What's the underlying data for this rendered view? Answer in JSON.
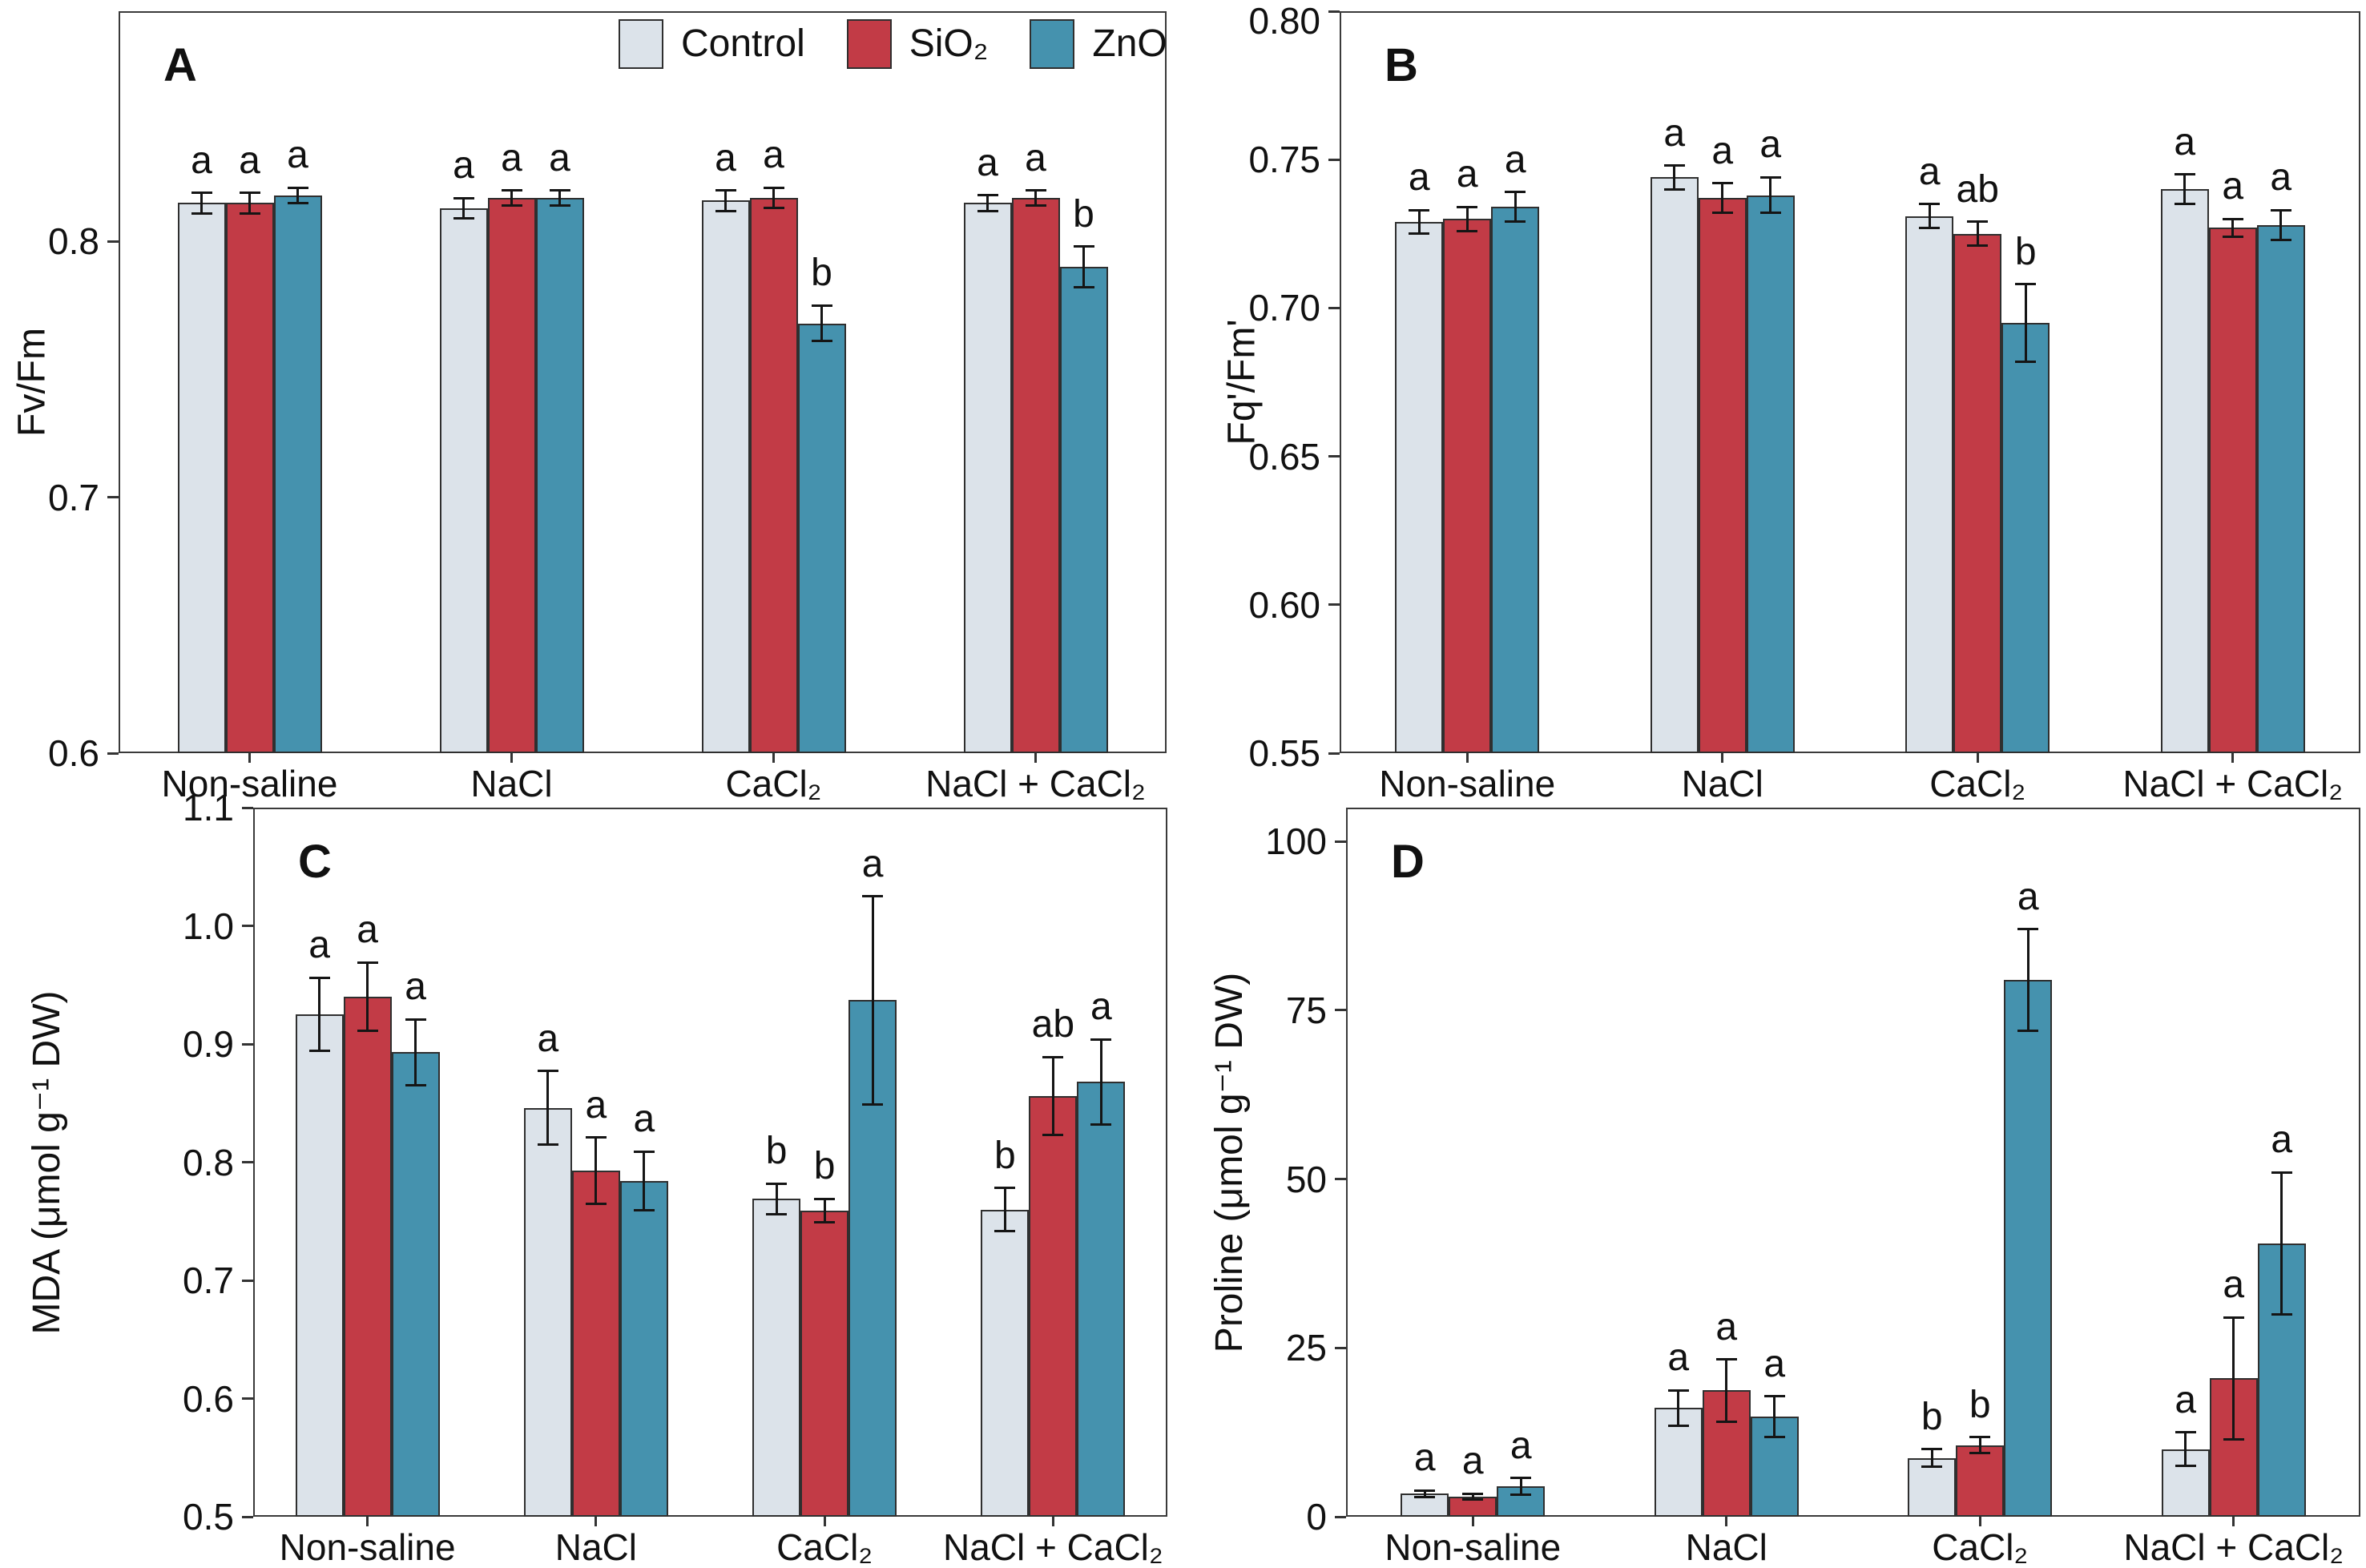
{
  "colors": {
    "control": "#dce3ea",
    "sio2": "#c23b46",
    "zno": "#4592ae",
    "edge": "#2f2f2f",
    "axis": "#333333"
  },
  "legend": {
    "position": "top-right-inside-panel-A",
    "items": [
      {
        "label": "Control",
        "color_key": "control"
      },
      {
        "label": "SiO₂",
        "color_key": "sio2"
      },
      {
        "label": "ZnO",
        "color_key": "zno"
      }
    ]
  },
  "chart_data": [
    {
      "type": "bar",
      "panel_label": "A",
      "ylabel": "Fv/Fm",
      "ylim": [
        0.6,
        0.89
      ],
      "grid": false,
      "yticks": [
        {
          "v": 0.6,
          "t": "0.6"
        },
        {
          "v": 0.7,
          "t": "0.7"
        },
        {
          "v": 0.8,
          "t": "0.8"
        }
      ],
      "categories": [
        "Non-saline",
        "NaCl",
        "CaCl₂",
        "NaCl + CaCl₂"
      ],
      "series": [
        {
          "name": "Control",
          "color_key": "control",
          "values": [
            0.815,
            0.813,
            0.816,
            0.815
          ],
          "errors": [
            0.004,
            0.004,
            0.004,
            0.003
          ],
          "sig_letters": [
            "a",
            "a",
            "a",
            "a"
          ]
        },
        {
          "name": "SiO₂",
          "color_key": "sio2",
          "values": [
            0.815,
            0.817,
            0.817,
            0.817
          ],
          "errors": [
            0.004,
            0.003,
            0.004,
            0.003
          ],
          "sig_letters": [
            "a",
            "a",
            "a",
            "a"
          ]
        },
        {
          "name": "ZnO",
          "color_key": "zno",
          "values": [
            0.818,
            0.817,
            0.768,
            0.79
          ],
          "errors": [
            0.003,
            0.003,
            0.007,
            0.008
          ],
          "sig_letters": [
            "a",
            "a",
            "b",
            "b"
          ]
        }
      ]
    },
    {
      "type": "bar",
      "panel_label": "B",
      "ylabel": "Fq'/Fm'",
      "ylim": [
        0.55,
        0.8
      ],
      "grid": false,
      "yticks": [
        {
          "v": 0.55,
          "t": "0.55"
        },
        {
          "v": 0.6,
          "t": "0.60"
        },
        {
          "v": 0.65,
          "t": "0.65"
        },
        {
          "v": 0.7,
          "t": "0.70"
        },
        {
          "v": 0.75,
          "t": "0.75"
        },
        {
          "v": 0.8,
          "t": "0.80"
        }
      ],
      "categories": [
        "Non-saline",
        "NaCl",
        "CaCl₂",
        "NaCl + CaCl₂"
      ],
      "series": [
        {
          "name": "Control",
          "color_key": "control",
          "values": [
            0.729,
            0.744,
            0.731,
            0.74
          ],
          "errors": [
            0.004,
            0.004,
            0.004,
            0.005
          ],
          "sig_letters": [
            "a",
            "a",
            "a",
            "a"
          ]
        },
        {
          "name": "SiO₂",
          "color_key": "sio2",
          "values": [
            0.73,
            0.737,
            0.725,
            0.727
          ],
          "errors": [
            0.004,
            0.005,
            0.004,
            0.003
          ],
          "sig_letters": [
            "a",
            "a",
            "ab",
            "a"
          ]
        },
        {
          "name": "ZnO",
          "color_key": "zno",
          "values": [
            0.734,
            0.738,
            0.695,
            0.728
          ],
          "errors": [
            0.005,
            0.006,
            0.013,
            0.005
          ],
          "sig_letters": [
            "a",
            "a",
            "b",
            "a"
          ]
        }
      ]
    },
    {
      "type": "bar",
      "panel_label": "C",
      "ylabel": "MDA (μmol g⁻¹ DW)",
      "ylim": [
        0.5,
        1.1
      ],
      "grid": false,
      "yticks": [
        {
          "v": 0.5,
          "t": "0.5"
        },
        {
          "v": 0.6,
          "t": "0.6"
        },
        {
          "v": 0.7,
          "t": "0.7"
        },
        {
          "v": 0.8,
          "t": "0.8"
        },
        {
          "v": 0.9,
          "t": "0.9"
        },
        {
          "v": 1.0,
          "t": "1.0"
        },
        {
          "v": 1.1,
          "t": "1.1"
        }
      ],
      "categories": [
        "Non-saline",
        "NaCl",
        "CaCl₂",
        "NaCl + CaCl₂"
      ],
      "series": [
        {
          "name": "Control",
          "color_key": "control",
          "values": [
            0.925,
            0.846,
            0.769,
            0.76
          ],
          "errors": [
            0.031,
            0.031,
            0.013,
            0.018
          ],
          "sig_letters": [
            "a",
            "a",
            "b",
            "b"
          ]
        },
        {
          "name": "SiO₂",
          "color_key": "sio2",
          "values": [
            0.94,
            0.793,
            0.759,
            0.856
          ],
          "errors": [
            0.029,
            0.028,
            0.01,
            0.033
          ],
          "sig_letters": [
            "a",
            "a",
            "b",
            "ab"
          ]
        },
        {
          "name": "ZnO",
          "color_key": "zno",
          "values": [
            0.893,
            0.784,
            0.937,
            0.868
          ],
          "errors": [
            0.028,
            0.025,
            0.088,
            0.036
          ],
          "sig_letters": [
            "a",
            "a",
            "a",
            "a"
          ]
        }
      ]
    },
    {
      "type": "bar",
      "panel_label": "D",
      "ylabel": "Proline (μmol g⁻¹ DW)",
      "ylim": [
        0,
        105
      ],
      "grid": false,
      "yticks": [
        {
          "v": 0,
          "t": "0"
        },
        {
          "v": 25,
          "t": "25"
        },
        {
          "v": 50,
          "t": "50"
        },
        {
          "v": 75,
          "t": "75"
        },
        {
          "v": 100,
          "t": "100"
        }
      ],
      "categories": [
        "Non-saline",
        "NaCl",
        "CaCl₂",
        "NaCl + CaCl₂"
      ],
      "series": [
        {
          "name": "Control",
          "color_key": "control",
          "values": [
            3.4,
            16.1,
            8.7,
            10.0
          ],
          "errors": [
            0.5,
            2.6,
            1.3,
            2.5
          ],
          "sig_letters": [
            "a",
            "a",
            "b",
            "a"
          ]
        },
        {
          "name": "SiO₂",
          "color_key": "sio2",
          "values": [
            3.0,
            18.7,
            10.6,
            20.5
          ],
          "errors": [
            0.4,
            4.6,
            1.2,
            9.0
          ],
          "sig_letters": [
            "a",
            "a",
            "b",
            "a"
          ]
        },
        {
          "name": "ZnO",
          "color_key": "zno",
          "values": [
            4.5,
            14.8,
            79.5,
            40.5
          ],
          "errors": [
            1.2,
            3.0,
            7.5,
            10.5
          ],
          "sig_letters": [
            "a",
            "a",
            "a",
            "a"
          ]
        }
      ]
    }
  ]
}
